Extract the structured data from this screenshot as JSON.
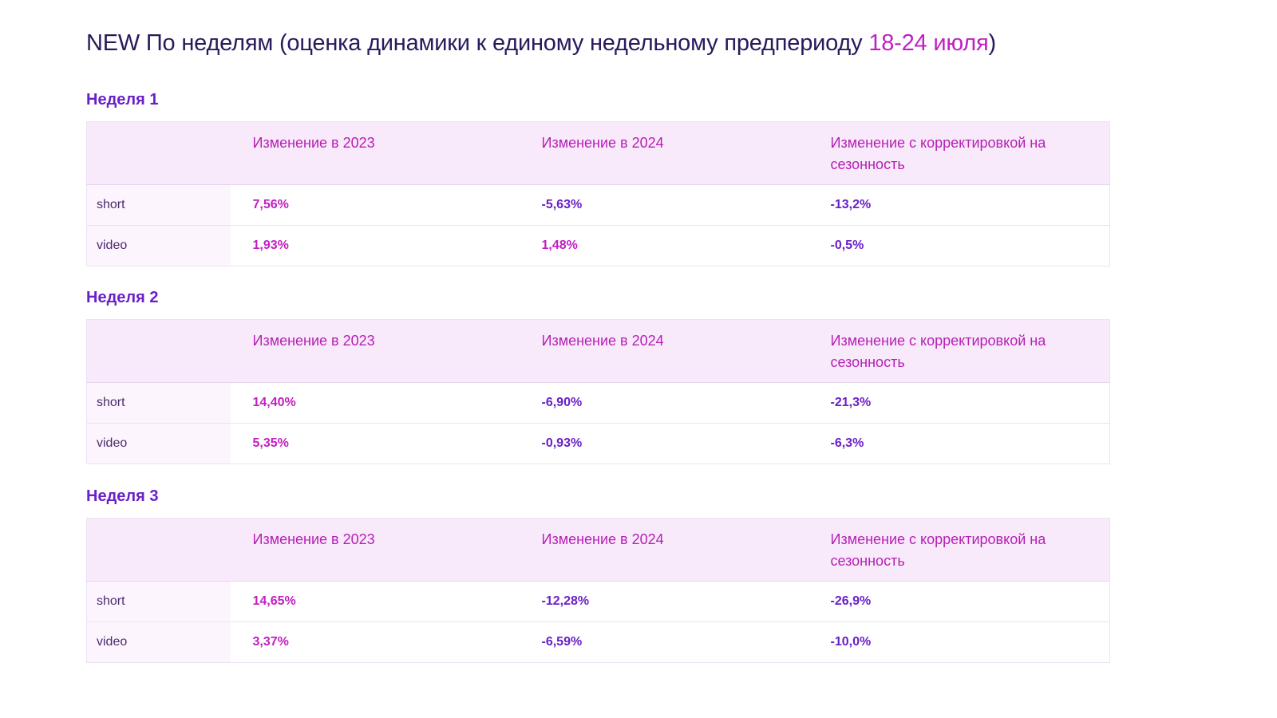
{
  "title": {
    "main": "NEW По неделям (оценка динамики к единому недельному предпериоду ",
    "period": "18-24 июля",
    "closing": ")"
  },
  "columns": [
    "",
    "Изменение в 2023",
    "Изменение в 2024",
    "Изменение с корректировкой на сезонность"
  ],
  "weeks": [
    {
      "label": "Неделя 1",
      "rows": [
        {
          "label": "short",
          "values": [
            "7,56%",
            "-5,63%",
            "-13,2%"
          ]
        },
        {
          "label": "video",
          "values": [
            "1,93%",
            "1,48%",
            "-0,5%"
          ]
        }
      ]
    },
    {
      "label": "Неделя 2",
      "rows": [
        {
          "label": "short",
          "values": [
            "14,40%",
            "-6,90%",
            "-21,3%"
          ]
        },
        {
          "label": "video",
          "values": [
            "5,35%",
            "-0,93%",
            "-6,3%"
          ]
        }
      ]
    },
    {
      "label": "Неделя 3",
      "rows": [
        {
          "label": "short",
          "values": [
            "14,65%",
            "-12,28%",
            "-26,9%"
          ]
        },
        {
          "label": "video",
          "values": [
            "3,37%",
            "-6,59%",
            "-10,0%"
          ]
        }
      ]
    }
  ],
  "colors": {
    "title": "#2a1a5c",
    "accent": "#c21fc2",
    "heading": "#6a20c8",
    "header_bg": "#f9eafb",
    "positive": "#c21fc2",
    "negative": "#6a20c8"
  }
}
